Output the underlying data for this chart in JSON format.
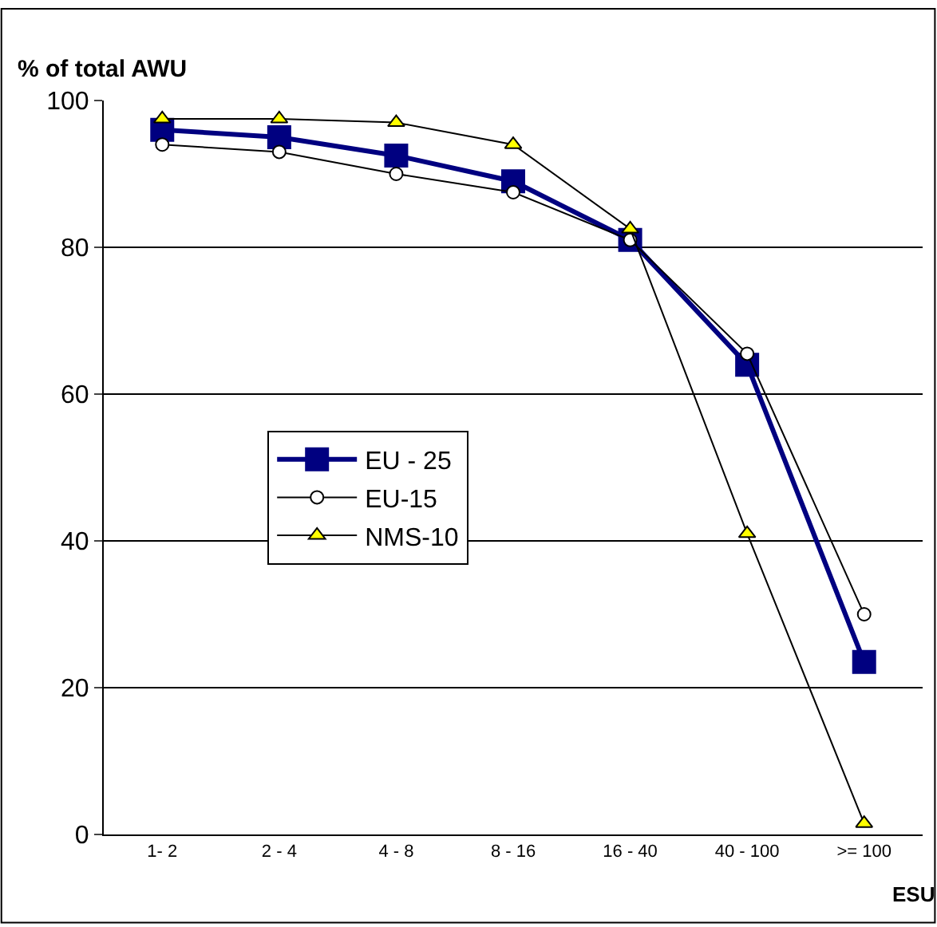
{
  "chart_data": {
    "type": "line",
    "title": "% of total AWU",
    "xlabel": "ESU",
    "categories": [
      "1- 2",
      "2 - 4",
      "4 - 8",
      "8 - 16",
      "16 - 40",
      "40 - 100",
      ">= 100"
    ],
    "series": [
      {
        "name": "EU - 25",
        "color": "#000080",
        "marker": "square",
        "values": [
          96,
          95,
          92.5,
          89,
          81,
          64,
          23.5
        ]
      },
      {
        "name": "EU-15",
        "color": "#000000",
        "marker": "circle",
        "values": [
          94,
          93,
          90,
          87.5,
          81,
          65.5,
          30
        ]
      },
      {
        "name": "NMS-10",
        "color": "#000000",
        "marker": "triangle",
        "values": [
          97.5,
          97.5,
          97,
          94,
          82.5,
          41,
          1.5
        ]
      }
    ],
    "ylim": [
      0,
      100
    ],
    "yticks": [
      0,
      20,
      40,
      60,
      80,
      100
    ],
    "grid": "y",
    "legend": "center left"
  }
}
